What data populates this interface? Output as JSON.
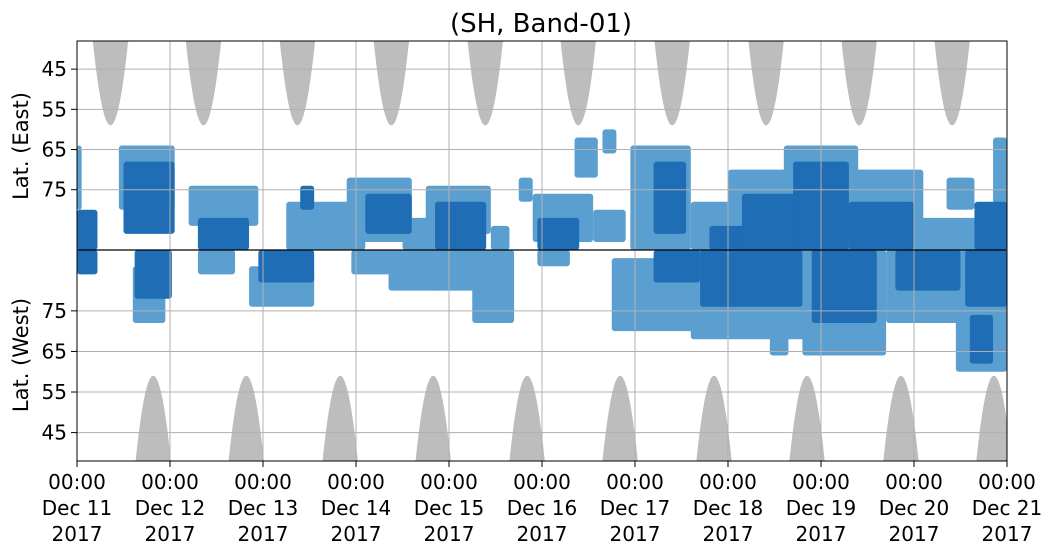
{
  "chart_data": {
    "type": "heatmap",
    "title": "(SH, Band-01)",
    "ylabel_top": "Lat. (East)",
    "ylabel_bottom": "Lat. (West)",
    "ylim_top": [
      38,
      90
    ],
    "ylim_bottom": [
      90,
      38
    ],
    "yticks_top": [
      45,
      55,
      65,
      75
    ],
    "yticks_bottom": [
      75,
      65,
      55,
      45
    ],
    "x_start": "Dec 11 2017 00:00",
    "x_end": "Dec 21 2017 00:00",
    "x_ticks": [
      {
        "time": "00:00",
        "date": "Dec 11",
        "year": "2017",
        "day": 0
      },
      {
        "time": "00:00",
        "date": "Dec 12",
        "year": "2017",
        "day": 1
      },
      {
        "time": "00:00",
        "date": "Dec 13",
        "year": "2017",
        "day": 2
      },
      {
        "time": "00:00",
        "date": "Dec 14",
        "year": "2017",
        "day": 3
      },
      {
        "time": "00:00",
        "date": "Dec 15",
        "year": "2017",
        "day": 4
      },
      {
        "time": "00:00",
        "date": "Dec 16",
        "year": "2017",
        "day": 5
      },
      {
        "time": "00:00",
        "date": "Dec 17",
        "year": "2017",
        "day": 6
      },
      {
        "time": "00:00",
        "date": "Dec 18",
        "year": "2017",
        "day": 7
      },
      {
        "time": "00:00",
        "date": "Dec 19",
        "year": "2017",
        "day": 8
      },
      {
        "time": "00:00",
        "date": "Dec 20",
        "year": "2017",
        "day": 9
      },
      {
        "time": "00:00",
        "date": "Dec 21",
        "year": "2017",
        "day": 10
      }
    ],
    "grid": true,
    "colors": {
      "strong": "#1f6db5",
      "weak": "#5b9fd0",
      "no_coverage": "#bdbdbd",
      "grid": "#b0b0b0",
      "center_line": "#000000"
    },
    "no_coverage_top": [
      {
        "center_day": 0.36,
        "half_width_days": 0.19,
        "min_lat": 59
      },
      {
        "center_day": 1.36,
        "half_width_days": 0.19,
        "min_lat": 59
      },
      {
        "center_day": 2.37,
        "half_width_days": 0.19,
        "min_lat": 59
      },
      {
        "center_day": 3.38,
        "half_width_days": 0.19,
        "min_lat": 59
      },
      {
        "center_day": 4.39,
        "half_width_days": 0.19,
        "min_lat": 59
      },
      {
        "center_day": 5.39,
        "half_width_days": 0.19,
        "min_lat": 59
      },
      {
        "center_day": 6.4,
        "half_width_days": 0.19,
        "min_lat": 59
      },
      {
        "center_day": 7.41,
        "half_width_days": 0.19,
        "min_lat": 59
      },
      {
        "center_day": 8.41,
        "half_width_days": 0.19,
        "min_lat": 59
      },
      {
        "center_day": 9.41,
        "half_width_days": 0.19,
        "min_lat": 59
      }
    ],
    "no_coverage_bottom": [
      {
        "center_day": 0.82,
        "half_width_days": 0.19,
        "min_lat": 59
      },
      {
        "center_day": 1.82,
        "half_width_days": 0.19,
        "min_lat": 59
      },
      {
        "center_day": 2.83,
        "half_width_days": 0.19,
        "min_lat": 59
      },
      {
        "center_day": 3.83,
        "half_width_days": 0.19,
        "min_lat": 59
      },
      {
        "center_day": 4.84,
        "half_width_days": 0.19,
        "min_lat": 59
      },
      {
        "center_day": 5.84,
        "half_width_days": 0.19,
        "min_lat": 59
      },
      {
        "center_day": 6.85,
        "half_width_days": 0.19,
        "min_lat": 59
      },
      {
        "center_day": 7.85,
        "half_width_days": 0.19,
        "min_lat": 59
      },
      {
        "center_day": 8.86,
        "half_width_days": 0.19,
        "min_lat": 59
      },
      {
        "center_day": 9.86,
        "half_width_days": 0.19,
        "min_lat": 59
      }
    ],
    "echo_clusters": [
      {
        "day_start": 0.0,
        "day_end": 0.22,
        "hemisphere": "east",
        "lat_min": 80,
        "lat_max": 90,
        "level": "strong"
      },
      {
        "day_start": 0.0,
        "day_end": 0.22,
        "hemisphere": "west",
        "lat_min": 84,
        "lat_max": 90,
        "level": "strong"
      },
      {
        "day_start": 0.0,
        "day_end": 0.05,
        "hemisphere": "east",
        "lat_min": 64,
        "lat_max": 80,
        "level": "weak"
      },
      {
        "day_start": 0.5,
        "day_end": 1.05,
        "hemisphere": "east",
        "lat_min": 68,
        "lat_max": 86,
        "level": "strong"
      },
      {
        "day_start": 0.45,
        "day_end": 1.05,
        "hemisphere": "east",
        "lat_min": 64,
        "lat_max": 80,
        "level": "weak"
      },
      {
        "day_start": 0.62,
        "day_end": 1.02,
        "hemisphere": "west",
        "lat_min": 78,
        "lat_max": 90,
        "level": "strong"
      },
      {
        "day_start": 0.6,
        "day_end": 0.95,
        "hemisphere": "west",
        "lat_min": 72,
        "lat_max": 86,
        "level": "weak"
      },
      {
        "day_start": 1.3,
        "day_end": 1.85,
        "hemisphere": "east",
        "lat_min": 82,
        "lat_max": 90,
        "level": "strong"
      },
      {
        "day_start": 1.2,
        "day_end": 1.95,
        "hemisphere": "east",
        "lat_min": 74,
        "lat_max": 84,
        "level": "weak"
      },
      {
        "day_start": 1.3,
        "day_end": 1.7,
        "hemisphere": "west",
        "lat_min": 84,
        "lat_max": 90,
        "level": "weak"
      },
      {
        "day_start": 1.95,
        "day_end": 2.55,
        "hemisphere": "west",
        "lat_min": 82,
        "lat_max": 90,
        "level": "strong"
      },
      {
        "day_start": 1.85,
        "day_end": 2.55,
        "hemisphere": "west",
        "lat_min": 76,
        "lat_max": 86,
        "level": "weak"
      },
      {
        "day_start": 2.25,
        "day_end": 3.1,
        "hemisphere": "east",
        "lat_min": 78,
        "lat_max": 90,
        "level": "weak"
      },
      {
        "day_start": 2.4,
        "day_end": 2.55,
        "hemisphere": "east",
        "lat_min": 74,
        "lat_max": 80,
        "level": "strong"
      },
      {
        "day_start": 3.1,
        "day_end": 3.6,
        "hemisphere": "east",
        "lat_min": 76,
        "lat_max": 86,
        "level": "strong"
      },
      {
        "day_start": 2.9,
        "day_end": 3.6,
        "hemisphere": "east",
        "lat_min": 72,
        "lat_max": 88,
        "level": "weak"
      },
      {
        "day_start": 2.95,
        "day_end": 3.55,
        "hemisphere": "west",
        "lat_min": 84,
        "lat_max": 90,
        "level": "weak"
      },
      {
        "day_start": 3.5,
        "day_end": 4.0,
        "hemisphere": "east",
        "lat_min": 82,
        "lat_max": 90,
        "level": "weak"
      },
      {
        "day_start": 3.35,
        "day_end": 3.9,
        "hemisphere": "west",
        "lat_min": 80,
        "lat_max": 90,
        "level": "weak"
      },
      {
        "day_start": 3.85,
        "day_end": 4.4,
        "hemisphere": "east",
        "lat_min": 78,
        "lat_max": 90,
        "level": "strong"
      },
      {
        "day_start": 3.75,
        "day_end": 4.45,
        "hemisphere": "east",
        "lat_min": 74,
        "lat_max": 86,
        "level": "weak"
      },
      {
        "day_start": 3.8,
        "day_end": 4.3,
        "hemisphere": "west",
        "lat_min": 80,
        "lat_max": 90,
        "level": "weak"
      },
      {
        "day_start": 4.25,
        "day_end": 4.7,
        "hemisphere": "west",
        "lat_min": 72,
        "lat_max": 90,
        "level": "weak"
      },
      {
        "day_start": 4.45,
        "day_end": 4.65,
        "hemisphere": "east",
        "lat_min": 84,
        "lat_max": 90,
        "level": "weak"
      },
      {
        "day_start": 4.75,
        "day_end": 4.9,
        "hemisphere": "east",
        "lat_min": 72,
        "lat_max": 78,
        "level": "weak"
      },
      {
        "day_start": 4.95,
        "day_end": 5.4,
        "hemisphere": "east",
        "lat_min": 82,
        "lat_max": 90,
        "level": "strong"
      },
      {
        "day_start": 4.9,
        "day_end": 5.55,
        "hemisphere": "east",
        "lat_min": 76,
        "lat_max": 88,
        "level": "weak"
      },
      {
        "day_start": 4.95,
        "day_end": 5.3,
        "hemisphere": "west",
        "lat_min": 86,
        "lat_max": 90,
        "level": "weak"
      },
      {
        "day_start": 5.35,
        "day_end": 5.6,
        "hemisphere": "east",
        "lat_min": 62,
        "lat_max": 72,
        "level": "weak"
      },
      {
        "day_start": 5.55,
        "day_end": 5.9,
        "hemisphere": "east",
        "lat_min": 80,
        "lat_max": 88,
        "level": "weak"
      },
      {
        "day_start": 6.2,
        "day_end": 6.55,
        "hemisphere": "east",
        "lat_min": 68,
        "lat_max": 86,
        "level": "strong"
      },
      {
        "day_start": 5.95,
        "day_end": 6.6,
        "hemisphere": "east",
        "lat_min": 64,
        "lat_max": 90,
        "level": "weak"
      },
      {
        "day_start": 5.65,
        "day_end": 5.8,
        "hemisphere": "east",
        "lat_min": 60,
        "lat_max": 66,
        "level": "weak"
      },
      {
        "day_start": 6.2,
        "day_end": 6.7,
        "hemisphere": "west",
        "lat_min": 82,
        "lat_max": 90,
        "level": "strong"
      },
      {
        "day_start": 5.75,
        "day_end": 6.7,
        "hemisphere": "west",
        "lat_min": 70,
        "lat_max": 88,
        "level": "weak"
      },
      {
        "day_start": 6.6,
        "day_end": 7.3,
        "hemisphere": "east",
        "lat_min": 78,
        "lat_max": 90,
        "level": "weak"
      },
      {
        "day_start": 6.8,
        "day_end": 7.4,
        "hemisphere": "east",
        "lat_min": 84,
        "lat_max": 90,
        "level": "strong"
      },
      {
        "day_start": 6.7,
        "day_end": 7.8,
        "hemisphere": "west",
        "lat_min": 76,
        "lat_max": 90,
        "level": "strong"
      },
      {
        "day_start": 6.6,
        "day_end": 7.95,
        "hemisphere": "west",
        "lat_min": 68,
        "lat_max": 90,
        "level": "weak"
      },
      {
        "day_start": 7.15,
        "day_end": 7.9,
        "hemisphere": "east",
        "lat_min": 76,
        "lat_max": 90,
        "level": "strong"
      },
      {
        "day_start": 7.0,
        "day_end": 8.0,
        "hemisphere": "east",
        "lat_min": 70,
        "lat_max": 90,
        "level": "weak"
      },
      {
        "day_start": 7.45,
        "day_end": 7.65,
        "hemisphere": "west",
        "lat_min": 64,
        "lat_max": 72,
        "level": "weak"
      },
      {
        "day_start": 7.7,
        "day_end": 8.3,
        "hemisphere": "east",
        "lat_min": 68,
        "lat_max": 90,
        "level": "strong"
      },
      {
        "day_start": 7.6,
        "day_end": 8.4,
        "hemisphere": "east",
        "lat_min": 64,
        "lat_max": 90,
        "level": "weak"
      },
      {
        "day_start": 7.9,
        "day_end": 8.6,
        "hemisphere": "west",
        "lat_min": 72,
        "lat_max": 90,
        "level": "strong"
      },
      {
        "day_start": 7.8,
        "day_end": 8.7,
        "hemisphere": "west",
        "lat_min": 64,
        "lat_max": 90,
        "level": "weak"
      },
      {
        "day_start": 8.3,
        "day_end": 9.0,
        "hemisphere": "east",
        "lat_min": 78,
        "lat_max": 90,
        "level": "strong"
      },
      {
        "day_start": 8.2,
        "day_end": 9.1,
        "hemisphere": "east",
        "lat_min": 70,
        "lat_max": 88,
        "level": "weak"
      },
      {
        "day_start": 8.8,
        "day_end": 9.5,
        "hemisphere": "west",
        "lat_min": 80,
        "lat_max": 90,
        "level": "strong"
      },
      {
        "day_start": 8.7,
        "day_end": 9.6,
        "hemisphere": "west",
        "lat_min": 72,
        "lat_max": 90,
        "level": "weak"
      },
      {
        "day_start": 9.0,
        "day_end": 9.7,
        "hemisphere": "east",
        "lat_min": 82,
        "lat_max": 90,
        "level": "weak"
      },
      {
        "day_start": 9.35,
        "day_end": 9.65,
        "hemisphere": "east",
        "lat_min": 72,
        "lat_max": 80,
        "level": "weak"
      },
      {
        "day_start": 9.55,
        "day_end": 10.0,
        "hemisphere": "west",
        "lat_min": 76,
        "lat_max": 90,
        "level": "strong"
      },
      {
        "day_start": 9.45,
        "day_end": 10.0,
        "hemisphere": "west",
        "lat_min": 60,
        "lat_max": 88,
        "level": "weak"
      },
      {
        "day_start": 9.6,
        "day_end": 9.85,
        "hemisphere": "west",
        "lat_min": 62,
        "lat_max": 74,
        "level": "strong"
      },
      {
        "day_start": 9.65,
        "day_end": 10.0,
        "hemisphere": "east",
        "lat_min": 78,
        "lat_max": 90,
        "level": "strong"
      },
      {
        "day_start": 9.85,
        "day_end": 10.0,
        "hemisphere": "east",
        "lat_min": 62,
        "lat_max": 86,
        "level": "weak"
      }
    ]
  }
}
